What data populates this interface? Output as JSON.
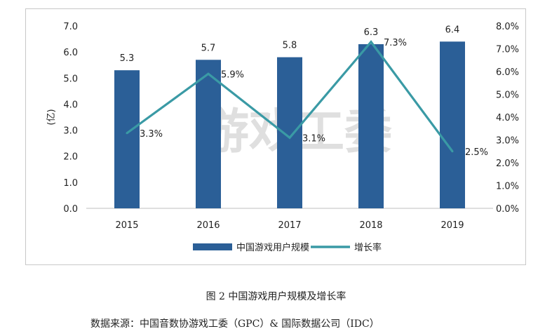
{
  "chart_data": {
    "type": "bar",
    "categories": [
      "2015",
      "2016",
      "2017",
      "2018",
      "2019"
    ],
    "series": [
      {
        "name": "中国游戏用户规模",
        "type": "bar",
        "axis": "left",
        "values": [
          5.3,
          5.7,
          5.8,
          6.3,
          6.4
        ],
        "labels": [
          "5.3",
          "5.7",
          "5.8",
          "6.3",
          "6.4"
        ],
        "color": "#2b5f97"
      },
      {
        "name": "增长率",
        "type": "line",
        "axis": "right",
        "values": [
          3.3,
          5.9,
          3.1,
          7.3,
          2.5
        ],
        "labels": [
          "3.3%",
          "5.9%",
          "3.1%",
          "7.3%",
          "2.5%"
        ],
        "color": "#3a9aa5"
      }
    ],
    "ylabel": "(亿)",
    "ylim": [
      0,
      7
    ],
    "y_ticks": [
      "0.0",
      "1.0",
      "2.0",
      "3.0",
      "4.0",
      "5.0",
      "6.0",
      "7.0"
    ],
    "y2lim": [
      0,
      8
    ],
    "y2_ticks": [
      "0.0%",
      "1.0%",
      "2.0%",
      "3.0%",
      "4.0%",
      "5.0%",
      "6.0%",
      "7.0%",
      "8.0%"
    ],
    "grid": false,
    "legend_position": "bottom",
    "watermark": "游戏工委"
  },
  "caption": "图 2  中国游戏用户规模及增长率",
  "source": "数据来源：中国音数协游戏工委（GPC）& 国际数据公司（IDC）"
}
